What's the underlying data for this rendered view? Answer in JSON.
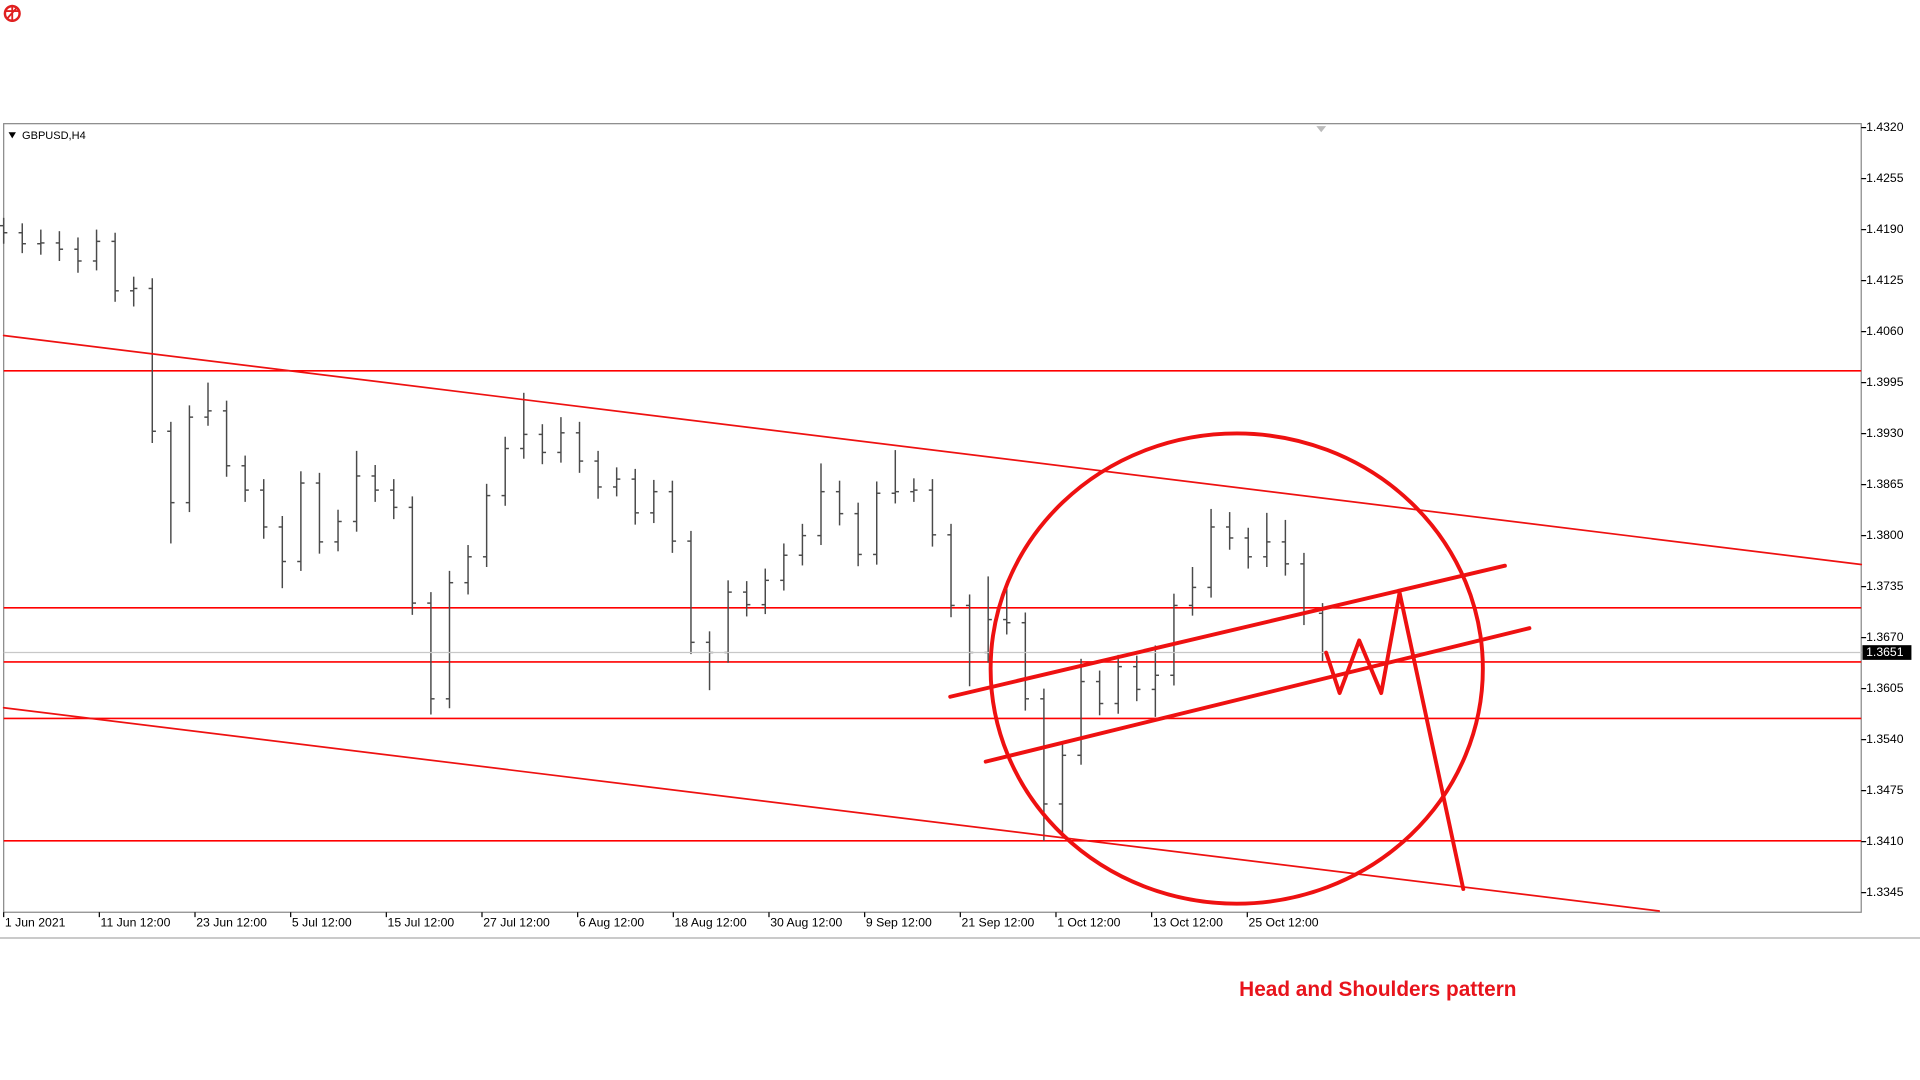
{
  "chart_data": {
    "type": "ohlc",
    "symbol": "GBPUSD,H4",
    "title": "Head and Shoulders pattern",
    "color": "#4a4a4a",
    "level_color": "#ff0000",
    "ylim": [
      1.332,
      1.4325
    ],
    "yticks": [
      1.3345,
      {
        "value": 1.341,
        "label": "1.3410"
      },
      1.3475,
      {
        "value": 1.354,
        "label": "1.3540"
      },
      1.3605,
      {
        "value": 1.367,
        "label": "1.3670"
      },
      1.3735,
      {
        "value": 1.38,
        "label": "1.3800"
      },
      1.3865,
      {
        "value": 1.393,
        "label": "1.3930"
      },
      1.3995,
      {
        "value": 1.406,
        "label": "1.4060"
      },
      1.4125,
      {
        "value": 1.419,
        "label": "1.4190"
      },
      1.4255,
      {
        "value": 1.432,
        "label": "1.4320"
      }
    ],
    "xlim": [
      0,
      100
    ],
    "xticks": [
      {
        "value": 0,
        "label": "1 Jun 2021"
      },
      {
        "value": 5.15,
        "label": "11 Jun 12:00"
      },
      {
        "value": 10.3,
        "label": "23 Jun 12:00"
      },
      {
        "value": 15.45,
        "label": "5 Jul 12:00"
      },
      {
        "value": 20.6,
        "label": "15 Jul 12:00"
      },
      {
        "value": 25.75,
        "label": "27 Jul 12:00"
      },
      {
        "value": 30.9,
        "label": "6 Aug 12:00"
      },
      {
        "value": 36.05,
        "label": "18 Aug 12:00"
      },
      {
        "value": 41.2,
        "label": "30 Aug 12:00"
      },
      {
        "value": 46.35,
        "label": "9 Sep 12:00"
      },
      {
        "value": 51.5,
        "label": "21 Sep 12:00"
      },
      {
        "value": 56.65,
        "label": "1 Oct 12:00"
      },
      {
        "value": 61.8,
        "label": "13 Oct 12:00"
      },
      {
        "value": 66.95,
        "label": "25 Oct 12:00"
      }
    ],
    "last_price": 1.3651,
    "levels": [
      1.401,
      1.3708,
      1.3639,
      1.3567,
      1.3411
    ],
    "ohlc": [
      [
        1.4195,
        1.4205,
        1.4172,
        1.4186
      ],
      [
        1.4186,
        1.4198,
        1.416,
        1.4172
      ],
      [
        1.4172,
        1.419,
        1.4158,
        1.4173
      ],
      [
        1.4173,
        1.4188,
        1.415,
        1.4165
      ],
      [
        1.4165,
        1.418,
        1.4135,
        1.415
      ],
      [
        1.415,
        1.419,
        1.4138,
        1.4175
      ],
      [
        1.4175,
        1.4186,
        1.4098,
        1.4112
      ],
      [
        1.4112,
        1.413,
        1.4092,
        1.4115
      ],
      [
        1.4115,
        1.4128,
        1.3918,
        1.3933
      ],
      [
        1.3933,
        1.3945,
        1.379,
        1.3842
      ],
      [
        1.3842,
        1.3966,
        1.383,
        1.3951
      ],
      [
        1.3951,
        1.3995,
        1.394,
        1.3959
      ],
      [
        1.3959,
        1.3972,
        1.3875,
        1.3889
      ],
      [
        1.3889,
        1.3902,
        1.3843,
        1.3858
      ],
      [
        1.3858,
        1.3872,
        1.3796,
        1.3811
      ],
      [
        1.3811,
        1.3825,
        1.3733,
        1.3767
      ],
      [
        1.3767,
        1.3882,
        1.3755,
        1.3867
      ],
      [
        1.3867,
        1.388,
        1.3777,
        1.3792
      ],
      [
        1.3792,
        1.3833,
        1.378,
        1.3818
      ],
      [
        1.3818,
        1.3908,
        1.3805,
        1.3876
      ],
      [
        1.3876,
        1.389,
        1.3843,
        1.3858
      ],
      [
        1.3858,
        1.3872,
        1.3821,
        1.3836
      ],
      [
        1.3836,
        1.385,
        1.3699,
        1.3714
      ],
      [
        1.3714,
        1.3728,
        1.3572,
        1.3592
      ],
      [
        1.3592,
        1.3755,
        1.358,
        1.374
      ],
      [
        1.374,
        1.3788,
        1.3725,
        1.3773
      ],
      [
        1.3773,
        1.3866,
        1.376,
        1.3851
      ],
      [
        1.3851,
        1.3926,
        1.3838,
        1.3911
      ],
      [
        1.3911,
        1.3982,
        1.3898,
        1.3929
      ],
      [
        1.3929,
        1.3942,
        1.3891,
        1.3906
      ],
      [
        1.3906,
        1.3951,
        1.3893,
        1.3931
      ],
      [
        1.3931,
        1.3945,
        1.388,
        1.3895
      ],
      [
        1.3895,
        1.3908,
        1.3847,
        1.3862
      ],
      [
        1.3862,
        1.3887,
        1.385,
        1.3872
      ],
      [
        1.3872,
        1.3885,
        1.3814,
        1.3829
      ],
      [
        1.3829,
        1.3871,
        1.3816,
        1.3856
      ],
      [
        1.3856,
        1.387,
        1.3778,
        1.3793
      ],
      [
        1.3793,
        1.3806,
        1.3649,
        1.3664
      ],
      [
        1.3664,
        1.3678,
        1.3603,
        1.3651
      ],
      [
        1.3651,
        1.3743,
        1.3638,
        1.3728
      ],
      [
        1.3728,
        1.3742,
        1.3697,
        1.3712
      ],
      [
        1.3712,
        1.3758,
        1.37,
        1.3743
      ],
      [
        1.3743,
        1.379,
        1.373,
        1.3775
      ],
      [
        1.3775,
        1.3815,
        1.3762,
        1.38
      ],
      [
        1.38,
        1.3892,
        1.3788,
        1.3856
      ],
      [
        1.3856,
        1.387,
        1.3813,
        1.3828
      ],
      [
        1.3828,
        1.3842,
        1.3761,
        1.3776
      ],
      [
        1.3776,
        1.3869,
        1.3763,
        1.3854
      ],
      [
        1.3854,
        1.3909,
        1.3841,
        1.3856
      ],
      [
        1.3856,
        1.3873,
        1.3843,
        1.3858
      ],
      [
        1.3858,
        1.3872,
        1.3786,
        1.3801
      ],
      [
        1.3801,
        1.3815,
        1.3696,
        1.3711
      ],
      [
        1.3711,
        1.3725,
        1.3608,
        1.3651
      ],
      [
        1.3651,
        1.3748,
        1.3638,
        1.3693
      ],
      [
        1.3693,
        1.3735,
        1.3674,
        1.3689
      ],
      [
        1.3689,
        1.3702,
        1.3577,
        1.3592
      ],
      [
        1.3592,
        1.3605,
        1.3411,
        1.3458
      ],
      [
        1.3458,
        1.3535,
        1.3418,
        1.352
      ],
      [
        1.352,
        1.3643,
        1.3508,
        1.3614
      ],
      [
        1.3614,
        1.3628,
        1.3571,
        1.3586
      ],
      [
        1.3586,
        1.3648,
        1.3573,
        1.3633
      ],
      [
        1.3633,
        1.3647,
        1.3589,
        1.3604
      ],
      [
        1.3604,
        1.366,
        1.3569,
        1.3622
      ],
      [
        1.3622,
        1.3726,
        1.3609,
        1.3711
      ],
      [
        1.3711,
        1.376,
        1.3698,
        1.3734
      ],
      [
        1.3734,
        1.3834,
        1.3721,
        1.3811
      ],
      [
        1.3811,
        1.383,
        1.3782,
        1.3797
      ],
      [
        1.3797,
        1.381,
        1.3758,
        1.3773
      ],
      [
        1.3773,
        1.3829,
        1.376,
        1.3792
      ],
      [
        1.3792,
        1.382,
        1.3749,
        1.3764
      ],
      [
        1.3764,
        1.3778,
        1.3686,
        1.3701
      ],
      [
        1.3701,
        1.3714,
        1.364,
        1.3651
      ]
    ]
  }
}
